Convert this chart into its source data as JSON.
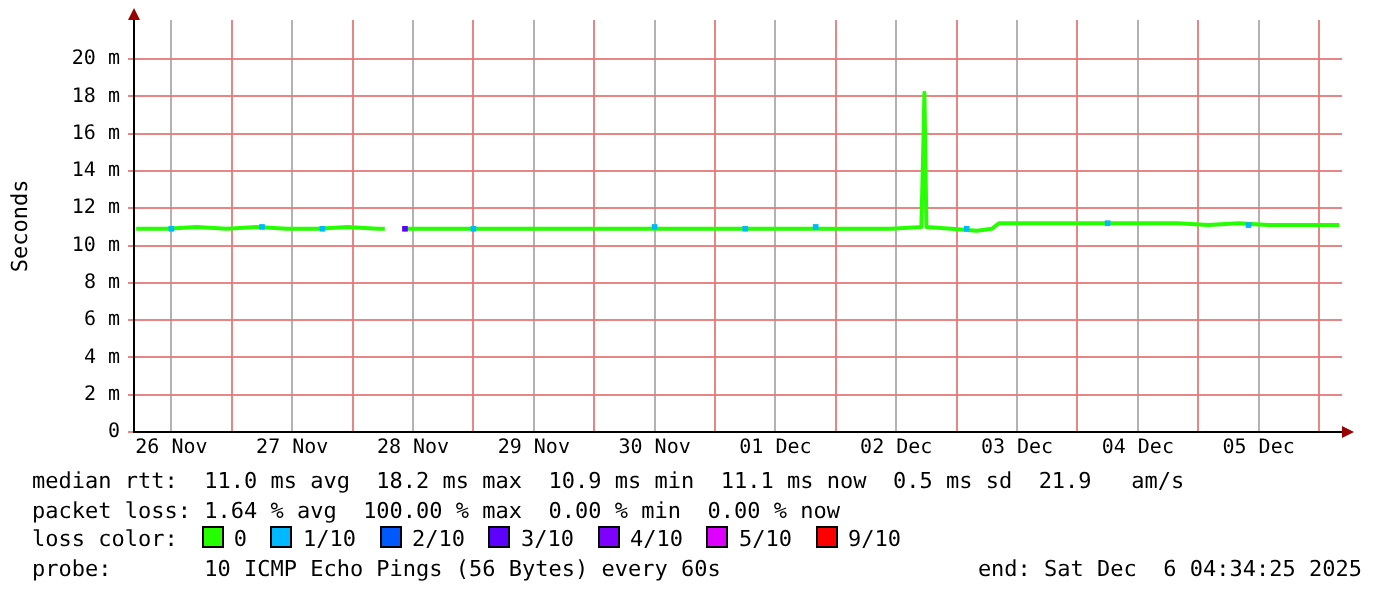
{
  "chart_data": {
    "type": "line",
    "ylabel": "Seconds",
    "legend_title": "loss color:",
    "legend": "bottom",
    "grid": true,
    "marker": "none",
    "xlim": [
      "2025-11-26T04:34",
      "2025-12-06T04:34"
    ],
    "xticks": [
      {
        "value": "2025-11-26T12:00",
        "label": "26 Nov"
      },
      {
        "value": "2025-11-27T00:00",
        "label": null
      },
      {
        "value": "2025-11-27T12:00",
        "label": "27 Nov"
      },
      {
        "value": "2025-11-28T00:00",
        "label": null
      },
      {
        "value": "2025-11-28T12:00",
        "label": "28 Nov"
      },
      {
        "value": "2025-11-29T00:00",
        "label": null
      },
      {
        "value": "2025-11-29T12:00",
        "label": "29 Nov"
      },
      {
        "value": "2025-11-30T00:00",
        "label": null
      },
      {
        "value": "2025-11-30T12:00",
        "label": "30 Nov"
      },
      {
        "value": "2025-12-01T00:00",
        "label": null
      },
      {
        "value": "2025-12-01T12:00",
        "label": "01 Dec"
      },
      {
        "value": "2025-12-02T00:00",
        "label": null
      },
      {
        "value": "2025-12-02T12:00",
        "label": "02 Dec"
      },
      {
        "value": "2025-12-03T00:00",
        "label": null
      },
      {
        "value": "2025-12-03T12:00",
        "label": "03 Dec"
      },
      {
        "value": "2025-12-04T00:00",
        "label": null
      },
      {
        "value": "2025-12-04T12:00",
        "label": "04 Dec"
      },
      {
        "value": "2025-12-05T00:00",
        "label": null
      },
      {
        "value": "2025-12-05T12:00",
        "label": "05 Dec"
      },
      {
        "value": "2025-12-06T00:00",
        "label": null
      }
    ],
    "ylim": [
      0,
      22.1
    ],
    "yticks": [
      0,
      {
        "value": 2,
        "label": "2 m"
      },
      {
        "value": 4,
        "label": "4 m"
      },
      {
        "value": 6,
        "label": "6 m"
      },
      {
        "value": 8,
        "label": "8 m"
      },
      {
        "value": 10,
        "label": "10 m"
      },
      {
        "value": 12,
        "label": "12 m"
      },
      {
        "value": 14,
        "label": "14 m"
      },
      {
        "value": 16,
        "label": "16 m"
      },
      {
        "value": 18,
        "label": "18 m"
      },
      {
        "value": 20,
        "label": "20 m"
      }
    ],
    "series": [
      {
        "name": "0",
        "color": "#26ff00",
        "x": [
          "2025-11-26T05:00",
          "2025-11-26T11:00",
          "2025-11-26T17:00",
          "2025-11-26T23:00",
          "2025-11-27T05:00",
          "2025-11-27T11:00",
          "2025-11-27T17:00",
          "2025-11-27T23:00",
          "2025-11-28T05:00",
          "2025-11-28T06:24",
          "2025-11-28T08:00",
          "2025-11-28T10:24",
          "2025-11-28T17:00",
          "2025-11-28T23:00",
          "2025-11-29T05:00",
          "2025-11-29T11:00",
          "2025-11-29T17:00",
          "2025-11-29T23:00",
          "2025-11-30T05:00",
          "2025-11-30T11:00",
          "2025-11-30T17:00",
          "2025-11-30T23:00",
          "2025-12-01T05:00",
          "2025-12-01T11:00",
          "2025-12-01T17:00",
          "2025-12-01T23:00",
          "2025-12-02T05:00",
          "2025-12-02T11:00",
          "2025-12-02T17:00",
          "2025-12-02T17:24",
          "2025-12-02T17:36",
          "2025-12-02T18:00",
          "2025-12-02T23:00",
          "2025-12-03T04:00",
          "2025-12-03T07:00",
          "2025-12-03T08:24",
          "2025-12-03T14:00",
          "2025-12-03T20:00",
          "2025-12-04T02:00",
          "2025-12-04T08:00",
          "2025-12-04T14:00",
          "2025-12-04T20:00",
          "2025-12-05T02:00",
          "2025-12-05T08:00",
          "2025-12-05T14:00",
          "2025-12-05T20:00",
          "2025-12-06T04:00"
        ],
        "values": [
          10.9,
          10.9,
          11.0,
          10.9,
          11.0,
          10.9,
          10.9,
          11.0,
          10.9,
          10.9,
          null,
          10.9,
          10.9,
          10.9,
          10.9,
          10.9,
          10.9,
          10.9,
          10.9,
          10.9,
          10.9,
          10.9,
          10.9,
          10.9,
          10.9,
          10.9,
          10.9,
          10.9,
          11.0,
          15.5,
          18.2,
          11.0,
          10.9,
          10.8,
          10.9,
          11.2,
          11.2,
          11.2,
          11.2,
          11.2,
          11.2,
          11.2,
          11.1,
          11.2,
          11.1,
          11.1,
          11.1
        ]
      },
      {
        "name": "1/10",
        "type": "scatter",
        "marker": "square",
        "color": "#00b8ff",
        "x": [
          "2025-11-26T12:00",
          "2025-11-27T06:00",
          "2025-11-27T18:00",
          "2025-11-29T00:00",
          "2025-11-30T12:00",
          "2025-12-01T06:00",
          "2025-12-01T20:00",
          "2025-12-03T02:00",
          "2025-12-04T06:00",
          "2025-12-05T10:00"
        ],
        "values": [
          10.9,
          11.0,
          10.9,
          10.9,
          11.0,
          10.9,
          11.0,
          10.9,
          11.2,
          11.1
        ]
      },
      {
        "name": "2/10",
        "type": "scatter",
        "marker": "square",
        "color": "#0059ff"
      },
      {
        "name": "3/10",
        "type": "scatter",
        "marker": "square",
        "color": "#5e00ff",
        "x": [
          "2025-11-28T10:24"
        ],
        "values": [
          10.9
        ]
      },
      {
        "name": "4/10",
        "type": "scatter",
        "marker": "square",
        "color": "#7e00ff"
      },
      {
        "name": "5/10",
        "type": "scatter",
        "marker": "square",
        "color": "#dd00ff"
      },
      {
        "name": "9/10",
        "type": "scatter",
        "marker": "square",
        "color": "#ff0000"
      }
    ],
    "annotations": [
      "median rtt:  11.0 ms avg  18.2 ms max  10.9 ms min  11.1 ms now  0.5 ms sd  21.9   am/s",
      "packet loss: 1.64 % avg  100.00 % max  0.00 % min  0.00 % now",
      "probe:       10 ICMP Echo Pings (56 Bytes) every 60s",
      "end: Sat Dec  6 04:34:25 2025"
    ]
  }
}
